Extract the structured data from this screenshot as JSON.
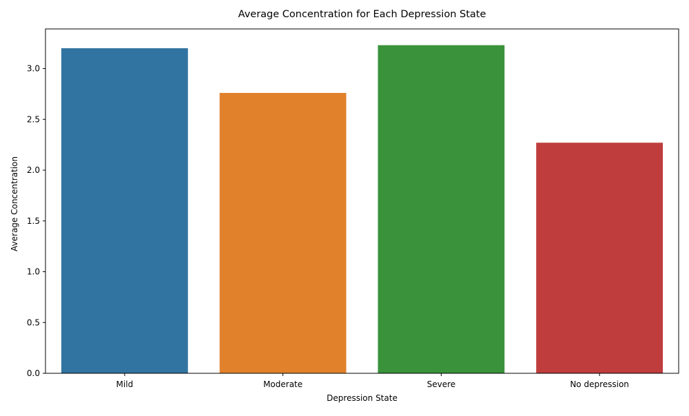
{
  "chart_data": {
    "type": "bar",
    "title": "Average Concentration for Each Depression State",
    "xlabel": "Depression State",
    "ylabel": "Average Concentration",
    "categories": [
      "Mild",
      "Moderate",
      "Severe",
      "No depression"
    ],
    "values": [
      3.2,
      2.76,
      3.23,
      2.27
    ],
    "colors": [
      "#3274a1",
      "#e1812c",
      "#3a923a",
      "#c03d3e"
    ],
    "ylim": [
      0,
      3.39
    ],
    "yticks": [
      0.0,
      0.5,
      1.0,
      1.5,
      2.0,
      2.5,
      3.0
    ],
    "ytick_labels": [
      "0.0",
      "0.5",
      "1.0",
      "1.5",
      "2.0",
      "2.5",
      "3.0"
    ],
    "grid": false,
    "legend": "none"
  }
}
